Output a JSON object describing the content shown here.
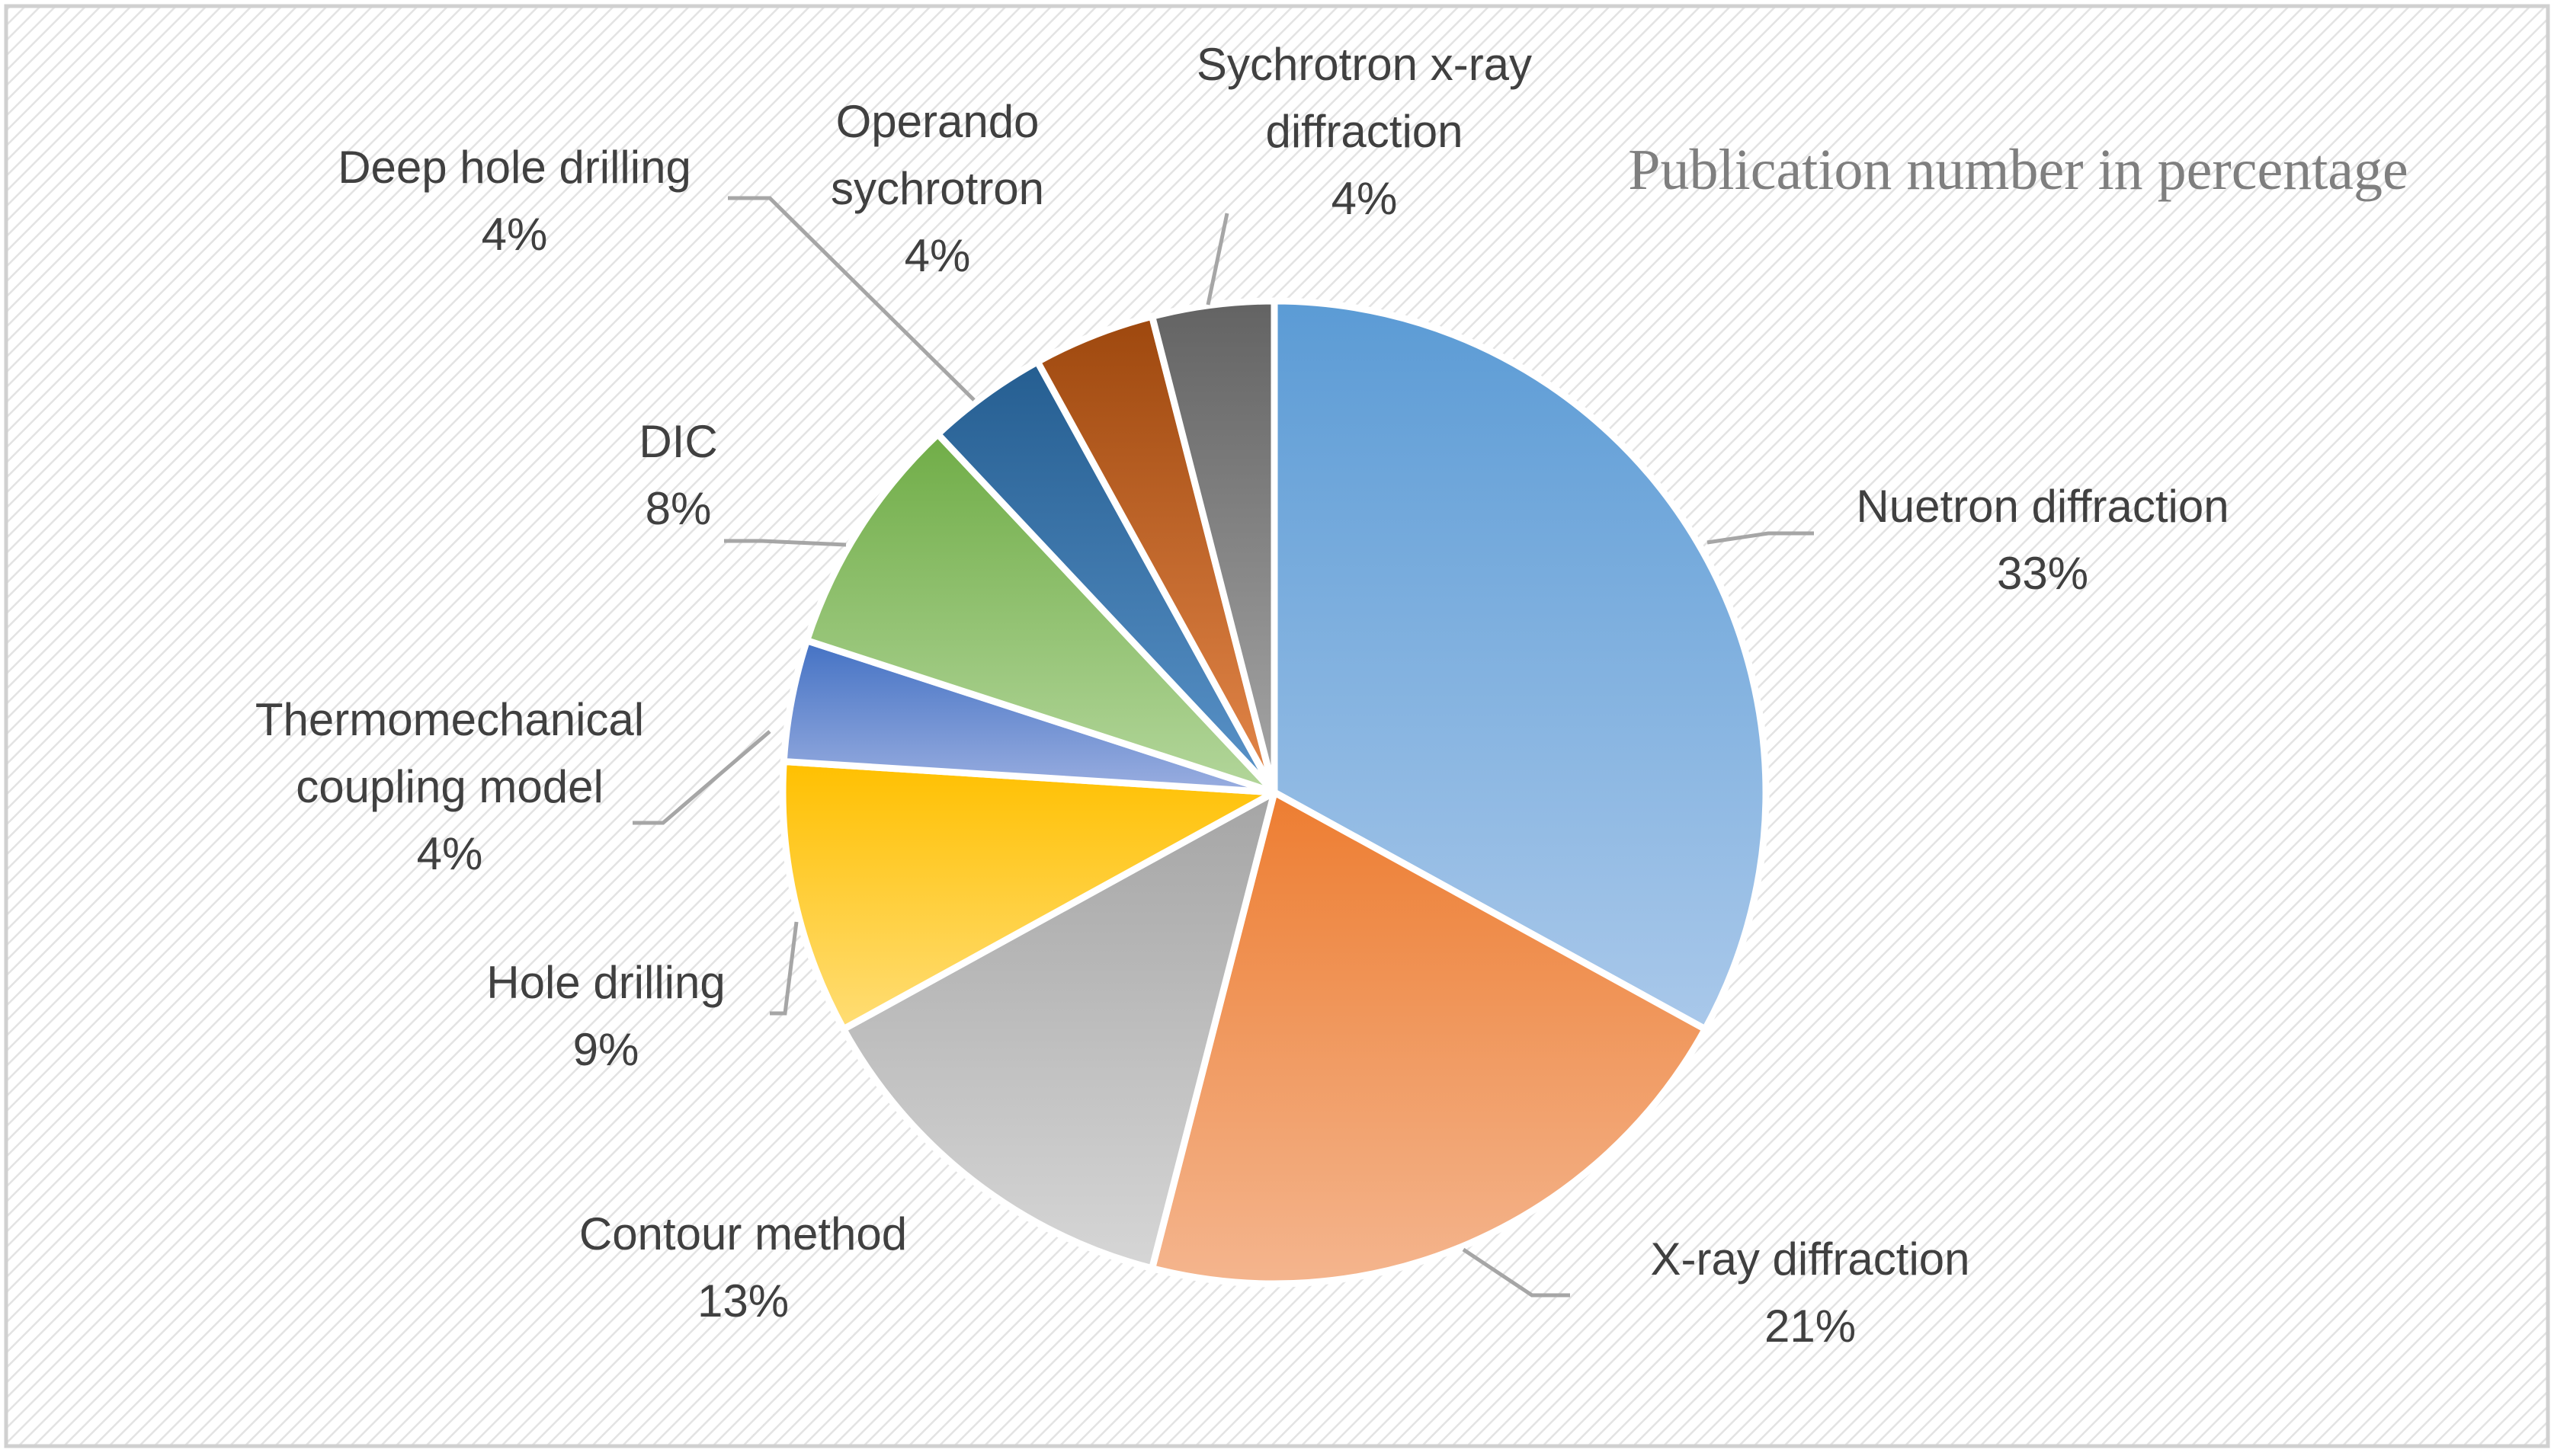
{
  "chart_data": {
    "type": "pie",
    "title": "Publication number in percentage",
    "slices": [
      {
        "label_lines": [
          "Nuetron diffraction"
        ],
        "value": 33,
        "value_label": "33%",
        "color": "#5b9bd5",
        "color_light": "#a9c8ea"
      },
      {
        "label_lines": [
          "X-ray diffraction"
        ],
        "value": 21,
        "value_label": "21%",
        "color": "#ed7d31",
        "color_light": "#f4b58e"
      },
      {
        "label_lines": [
          "Contour method"
        ],
        "value": 13,
        "value_label": "13%",
        "color": "#a5a5a5",
        "color_light": "#d6d6d6"
      },
      {
        "label_lines": [
          "Hole drilling"
        ],
        "value": 9,
        "value_label": "9%",
        "color": "#ffc000",
        "color_light": "#ffdd75"
      },
      {
        "label_lines": [
          "Thermomechanical",
          "coupling model"
        ],
        "value": 4,
        "value_label": "4%",
        "color": "#4472c4",
        "color_light": "#9aaee0"
      },
      {
        "label_lines": [
          "DIC"
        ],
        "value": 8,
        "value_label": "8%",
        "color": "#70ad47",
        "color_light": "#b3d69b"
      },
      {
        "label_lines": [
          "Deep hole drilling"
        ],
        "value": 4,
        "value_label": "4%",
        "color": "#255e91",
        "color_light": "#5a93c9"
      },
      {
        "label_lines": [
          "Operando",
          "sychrotron"
        ],
        "value": 4,
        "value_label": "4%",
        "color": "#9e480e",
        "color_light": "#e4874a"
      },
      {
        "label_lines": [
          "Sychrotron x-ray",
          "diffraction"
        ],
        "value": 4,
        "value_label": "4%",
        "color": "#636363",
        "color_light": "#a6a6a6"
      }
    ]
  }
}
